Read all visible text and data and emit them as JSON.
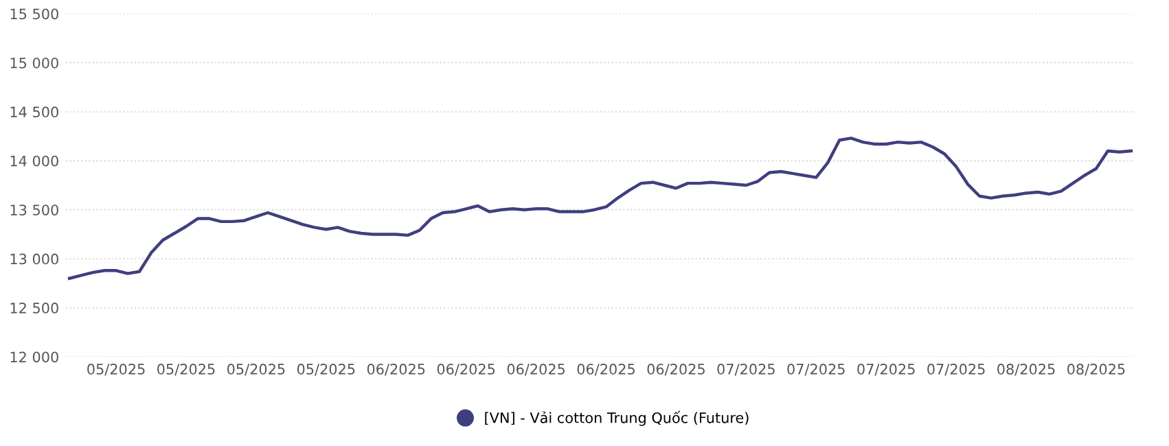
{
  "chart_data": {
    "type": "line",
    "categories": [
      null,
      null,
      null,
      null,
      "05/2025",
      null,
      null,
      null,
      null,
      null,
      "05/2025",
      null,
      null,
      null,
      null,
      null,
      "05/2025",
      null,
      null,
      null,
      null,
      null,
      "05/2025",
      null,
      null,
      null,
      null,
      null,
      "06/2025",
      null,
      null,
      null,
      null,
      null,
      "06/2025",
      null,
      null,
      null,
      null,
      null,
      "06/2025",
      null,
      null,
      null,
      null,
      null,
      "06/2025",
      null,
      null,
      null,
      null,
      null,
      "06/2025",
      null,
      null,
      null,
      null,
      null,
      "07/2025",
      null,
      null,
      null,
      null,
      null,
      "07/2025",
      null,
      null,
      null,
      null,
      null,
      "07/2025",
      null,
      null,
      null,
      null,
      null,
      "07/2025",
      null,
      null,
      null,
      null,
      null,
      "08/2025",
      null,
      null,
      null,
      null,
      null,
      "08/2025",
      null,
      null,
      null
    ],
    "series": [
      {
        "name": "[VN] - Vải cotton Trung Quốc (Future)",
        "color": "#3f3f7f",
        "values": [
          12800,
          12830,
          12860,
          12880,
          12880,
          12850,
          12870,
          13060,
          13190,
          13260,
          13330,
          13410,
          13410,
          13380,
          13380,
          13390,
          13430,
          13470,
          13430,
          13390,
          13350,
          13320,
          13300,
          13320,
          13280,
          13260,
          13250,
          13250,
          13250,
          13240,
          13290,
          13410,
          13470,
          13480,
          13510,
          13540,
          13480,
          13500,
          13510,
          13500,
          13510,
          13510,
          13480,
          13480,
          13480,
          13500,
          13530,
          13620,
          13700,
          13770,
          13780,
          13750,
          13720,
          13770,
          13770,
          13780,
          13770,
          13760,
          13750,
          13790,
          13880,
          13890,
          13870,
          13850,
          13830,
          13980,
          14210,
          14230,
          14190,
          14170,
          14170,
          14190,
          14180,
          14190,
          14140,
          14070,
          13940,
          13760,
          13640,
          13620,
          13640,
          13650,
          13670,
          13680,
          13660,
          13690,
          13770,
          13850,
          13920,
          14100,
          14090,
          14100
        ]
      }
    ],
    "ylim": [
      12000,
      15500
    ],
    "yticks": [
      {
        "value": 12000,
        "label": "12 000"
      },
      {
        "value": 12500,
        "label": "12 500"
      },
      {
        "value": 13000,
        "label": "13 000"
      },
      {
        "value": 13500,
        "label": "13 500"
      },
      {
        "value": 14000,
        "label": "14 000"
      },
      {
        "value": 14500,
        "label": "14 500"
      },
      {
        "value": 15000,
        "label": "15 000"
      },
      {
        "value": 15500,
        "label": "15 500"
      }
    ],
    "grid": "y",
    "legend": "bottom",
    "marker": "none",
    "line_style": "solid"
  }
}
